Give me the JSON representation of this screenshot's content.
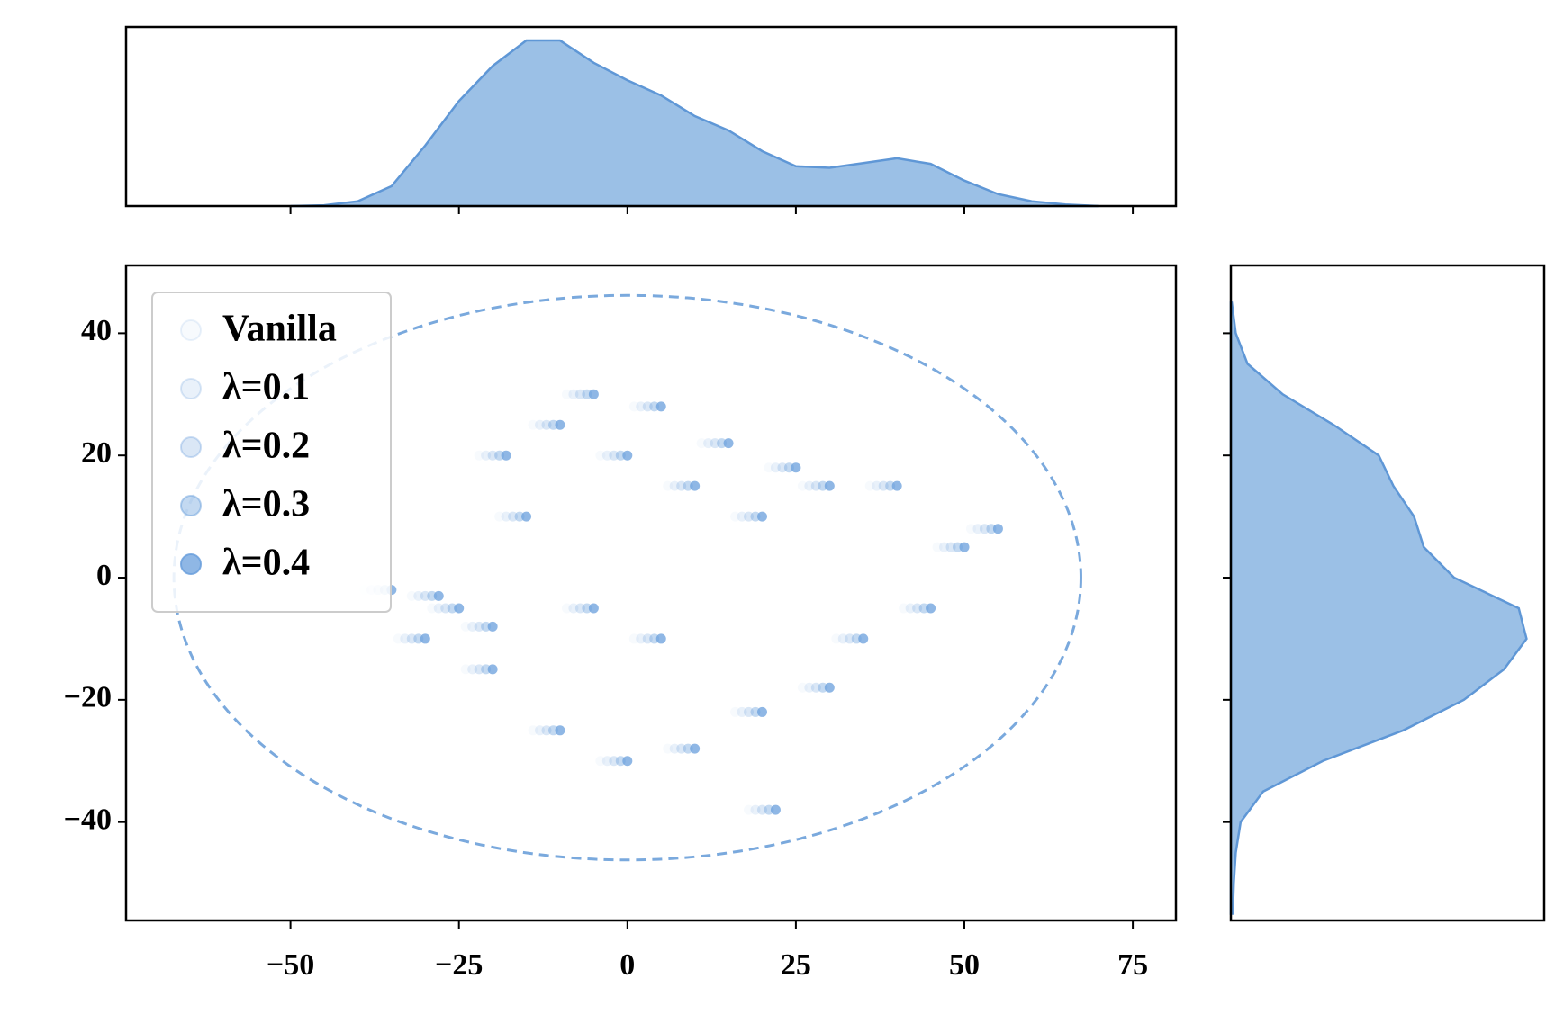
{
  "chart_data": {
    "type": "scatter",
    "xlim": [
      -74.4,
      81.4
    ],
    "ylim": [
      -56.1,
      51.1
    ],
    "xticks": [
      {
        "value": -50,
        "label": "−50"
      },
      {
        "value": -25,
        "label": "−25"
      },
      0,
      25,
      50,
      75
    ],
    "yticks": [
      {
        "value": -40,
        "label": "−40"
      },
      {
        "value": -20,
        "label": "−20"
      },
      0,
      20,
      40
    ],
    "grid": false,
    "legend": "upper left",
    "series": [
      {
        "name": "Vanilla",
        "color": "#6a9fdc",
        "alpha": 0.05,
        "x": [
          -29,
          -24,
          -32,
          -19,
          -14,
          -9,
          -4,
          1,
          6,
          11,
          16,
          21,
          26,
          36,
          46,
          51,
          41,
          31,
          26,
          16,
          6,
          -4,
          -14,
          -24,
          -34,
          -39,
          -9,
          1,
          18,
          -22
        ],
        "y": [
          -5,
          -8,
          -3,
          10,
          25,
          30,
          20,
          28,
          15,
          22,
          10,
          18,
          15,
          15,
          5,
          8,
          -5,
          -10,
          -18,
          -22,
          -28,
          -30,
          -25,
          -15,
          -10,
          -2,
          -5,
          -10,
          -38,
          20
        ]
      },
      {
        "name": "λ=0.1",
        "color": "#6a9fdc",
        "alpha": 0.15,
        "x": [
          -28,
          -23,
          -31,
          -18,
          -13,
          -8,
          -3,
          2,
          7,
          12,
          17,
          22,
          27,
          37,
          47,
          52,
          42,
          32,
          27,
          17,
          7,
          -3,
          -13,
          -23,
          -33,
          -38,
          -8,
          2,
          19,
          -21
        ],
        "y": [
          -5,
          -8,
          -3,
          10,
          25,
          30,
          20,
          28,
          15,
          22,
          10,
          18,
          15,
          15,
          5,
          8,
          -5,
          -10,
          -18,
          -22,
          -28,
          -30,
          -25,
          -15,
          -10,
          -2,
          -5,
          -10,
          -38,
          20
        ]
      },
      {
        "name": "λ=0.2",
        "color": "#6a9fdc",
        "alpha": 0.25,
        "x": [
          -27,
          -22,
          -30,
          -17,
          -12,
          -7,
          -2,
          3,
          8,
          13,
          18,
          23,
          28,
          38,
          48,
          53,
          43,
          33,
          28,
          18,
          8,
          -2,
          -12,
          -22,
          -32,
          -37,
          -7,
          3,
          20,
          -20
        ],
        "y": [
          -5,
          -8,
          -3,
          10,
          25,
          30,
          20,
          28,
          15,
          22,
          10,
          18,
          15,
          15,
          5,
          8,
          -5,
          -10,
          -18,
          -22,
          -28,
          -30,
          -25,
          -15,
          -10,
          -2,
          -5,
          -10,
          -38,
          20
        ]
      },
      {
        "name": "λ=0.3",
        "color": "#6a9fdc",
        "alpha": 0.4,
        "x": [
          -26,
          -21,
          -29,
          -16,
          -11,
          -6,
          -1,
          4,
          9,
          14,
          19,
          24,
          29,
          39,
          49,
          54,
          44,
          34,
          29,
          19,
          9,
          -1,
          -11,
          -21,
          -31,
          -36,
          -6,
          4,
          21,
          -19
        ],
        "y": [
          -5,
          -8,
          -3,
          10,
          25,
          30,
          20,
          28,
          15,
          22,
          10,
          18,
          15,
          15,
          5,
          8,
          -5,
          -10,
          -18,
          -22,
          -28,
          -30,
          -25,
          -15,
          -10,
          -2,
          -5,
          -10,
          -38,
          20
        ]
      },
      {
        "name": "λ=0.4",
        "color": "#6a9fdc",
        "alpha": 0.75,
        "x": [
          -25,
          -20,
          -28,
          -15,
          -10,
          -5,
          0,
          5,
          10,
          15,
          20,
          25,
          30,
          40,
          50,
          55,
          45,
          35,
          30,
          20,
          10,
          0,
          -10,
          -20,
          -30,
          -35,
          -5,
          5,
          22,
          -18
        ],
        "y": [
          -5,
          -8,
          -3,
          10,
          25,
          30,
          20,
          28,
          15,
          22,
          10,
          18,
          15,
          15,
          5,
          8,
          -5,
          -10,
          -18,
          -22,
          -28,
          -30,
          -25,
          -15,
          -10,
          -2,
          -5,
          -10,
          -38,
          20
        ]
      }
    ],
    "ellipse": {
      "cx": 0,
      "cy": 0,
      "rx": 67.3,
      "ry": 46.2,
      "color": "#7aa9dd"
    },
    "marginal_x": {
      "type": "kde",
      "fill": "#9bc0e6",
      "color": "#5f97d6",
      "ylim": [
        0,
        0.0225
      ],
      "x": [
        -50,
        -45,
        -40,
        -35,
        -30,
        -25,
        -20,
        -15,
        -10,
        -5,
        0,
        5,
        10,
        15,
        20,
        25,
        30,
        35,
        40,
        45,
        50,
        55,
        60,
        65,
        70
      ],
      "density": [
        0,
        0.0001,
        0.0006,
        0.0025,
        0.0076,
        0.0132,
        0.0176,
        0.0208,
        0.0208,
        0.018,
        0.0158,
        0.0139,
        0.0113,
        0.0095,
        0.0069,
        0.005,
        0.0048,
        0.0054,
        0.006,
        0.0053,
        0.0032,
        0.0015,
        0.0006,
        0.0002,
        0
      ]
    },
    "marginal_y": {
      "type": "kde",
      "fill": "#9bc0e6",
      "color": "#5f97d6",
      "xlim": [
        0,
        0.032
      ],
      "y": [
        -55,
        -50,
        -45,
        -40,
        -35,
        -30,
        -25,
        -20,
        -15,
        -10,
        -5,
        0,
        5,
        10,
        15,
        20,
        25,
        30,
        35,
        40,
        45
      ],
      "density": [
        0.0002,
        0.0003,
        0.0005,
        0.001,
        0.0033,
        0.0094,
        0.0176,
        0.0238,
        0.0279,
        0.0302,
        0.0294,
        0.0228,
        0.0197,
        0.0187,
        0.0166,
        0.0151,
        0.0105,
        0.0053,
        0.0017,
        0.0005,
        0.0001
      ]
    }
  }
}
